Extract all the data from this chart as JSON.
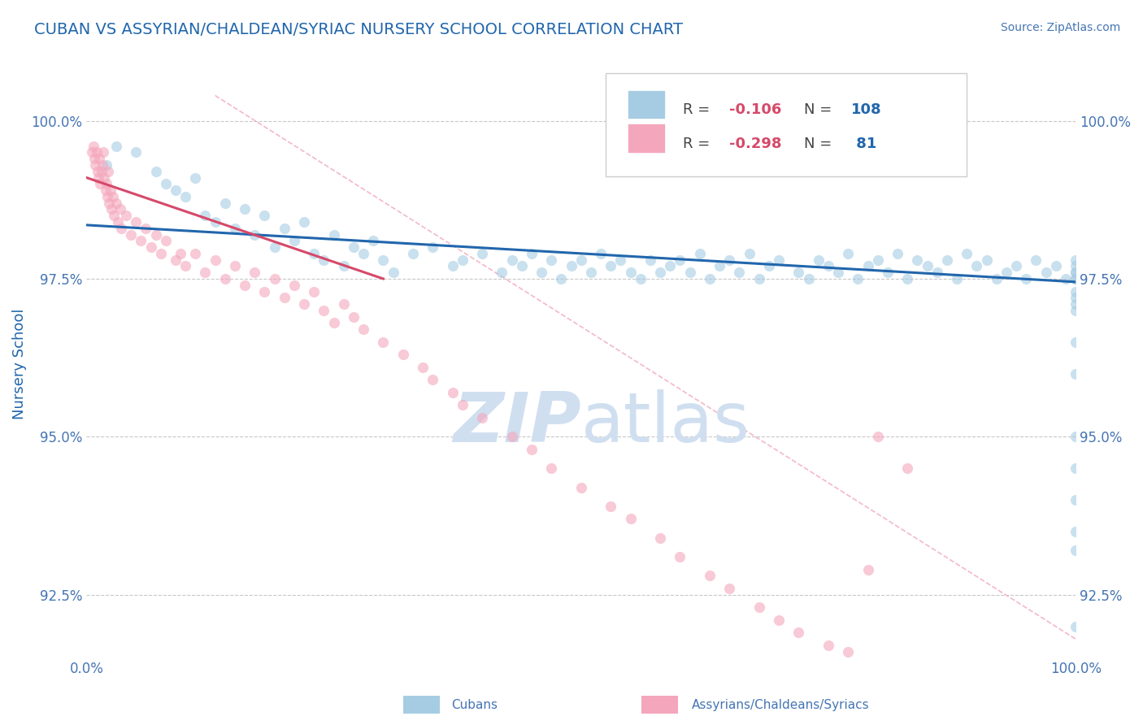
{
  "title": "CUBAN VS ASSYRIAN/CHALDEAN/SYRIAC NURSERY SCHOOL CORRELATION CHART",
  "source_text": "Source: ZipAtlas.com",
  "ylabel": "Nursery School",
  "x_min": 0.0,
  "x_max": 100.0,
  "y_min": 91.5,
  "y_max": 100.8,
  "y_ticks": [
    92.5,
    95.0,
    97.5,
    100.0
  ],
  "y_tick_labels": [
    "92.5%",
    "95.0%",
    "97.5%",
    "100.0%"
  ],
  "x_ticks": [
    0,
    100
  ],
  "x_tick_labels": [
    "0.0%",
    "100.0%"
  ],
  "blue_color": "#a6cce3",
  "pink_color": "#f4a6bc",
  "blue_line_color": "#2166ac",
  "pink_line_color": "#d6496a",
  "diag_line_color": "#f4b8c8",
  "legend_R_color": "#d6496a",
  "legend_N_color": "#2166ac",
  "background_color": "#ffffff",
  "title_color": "#2166ac",
  "axis_label_color": "#2166ac",
  "tick_label_color": "#4575b4",
  "grid_color": "#c8c8c8",
  "watermark_color": "#d0dff0",
  "blue_line_start_y": 98.35,
  "blue_line_end_y": 97.45,
  "pink_line_start_y": 99.1,
  "pink_line_end_y": 97.5,
  "diag_line_start_x": 13,
  "diag_line_start_y": 100.4,
  "diag_line_end_x": 100,
  "diag_line_end_y": 91.8,
  "blue_scatter_x": [
    2.0,
    3.0,
    5.0,
    7.0,
    8.0,
    9.0,
    10.0,
    11.0,
    12.0,
    13.0,
    14.0,
    15.0,
    16.0,
    17.0,
    18.0,
    19.0,
    20.0,
    21.0,
    22.0,
    23.0,
    24.0,
    25.0,
    26.0,
    27.0,
    28.0,
    29.0,
    30.0,
    31.0,
    33.0,
    35.0,
    37.0,
    38.0,
    40.0,
    42.0,
    43.0,
    44.0,
    45.0,
    46.0,
    47.0,
    48.0,
    49.0,
    50.0,
    51.0,
    52.0,
    53.0,
    54.0,
    55.0,
    56.0,
    57.0,
    58.0,
    59.0,
    60.0,
    61.0,
    62.0,
    63.0,
    64.0,
    65.0,
    66.0,
    67.0,
    68.0,
    69.0,
    70.0,
    72.0,
    73.0,
    74.0,
    75.0,
    76.0,
    77.0,
    78.0,
    79.0,
    80.0,
    81.0,
    82.0,
    83.0,
    84.0,
    85.0,
    86.0,
    87.0,
    88.0,
    89.0,
    90.0,
    91.0,
    92.0,
    93.0,
    94.0,
    95.0,
    96.0,
    97.0,
    98.0,
    99.0,
    100.0,
    100.0,
    100.0,
    100.0,
    100.0,
    100.0,
    100.0,
    100.0,
    100.0,
    100.0,
    100.0,
    100.0,
    100.0,
    100.0,
    100.0,
    100.0,
    100.0,
    100.0
  ],
  "blue_scatter_y": [
    99.3,
    99.6,
    99.5,
    99.2,
    99.0,
    98.9,
    98.8,
    99.1,
    98.5,
    98.4,
    98.7,
    98.3,
    98.6,
    98.2,
    98.5,
    98.0,
    98.3,
    98.1,
    98.4,
    97.9,
    97.8,
    98.2,
    97.7,
    98.0,
    97.9,
    98.1,
    97.8,
    97.6,
    97.9,
    98.0,
    97.7,
    97.8,
    97.9,
    97.6,
    97.8,
    97.7,
    97.9,
    97.6,
    97.8,
    97.5,
    97.7,
    97.8,
    97.6,
    97.9,
    97.7,
    97.8,
    97.6,
    97.5,
    97.8,
    97.6,
    97.7,
    97.8,
    97.6,
    97.9,
    97.5,
    97.7,
    97.8,
    97.6,
    97.9,
    97.5,
    97.7,
    97.8,
    97.6,
    97.5,
    97.8,
    97.7,
    97.6,
    97.9,
    97.5,
    97.7,
    97.8,
    97.6,
    97.9,
    97.5,
    97.8,
    97.7,
    97.6,
    97.8,
    97.5,
    97.9,
    97.7,
    97.8,
    97.5,
    97.6,
    97.7,
    97.5,
    97.8,
    97.6,
    97.7,
    97.5,
    97.6,
    97.8,
    97.5,
    97.7,
    97.6,
    94.5,
    95.0,
    97.3,
    96.5,
    94.0,
    92.0,
    97.5,
    97.0,
    97.2,
    93.5,
    96.0,
    97.1,
    93.2
  ],
  "pink_scatter_x": [
    0.5,
    0.7,
    0.8,
    0.9,
    1.0,
    1.1,
    1.2,
    1.3,
    1.4,
    1.5,
    1.6,
    1.7,
    1.8,
    1.9,
    2.0,
    2.1,
    2.2,
    2.3,
    2.4,
    2.5,
    2.7,
    2.8,
    3.0,
    3.2,
    3.4,
    3.5,
    4.0,
    4.5,
    5.0,
    5.5,
    6.0,
    6.5,
    7.0,
    7.5,
    8.0,
    9.0,
    9.5,
    10.0,
    11.0,
    12.0,
    13.0,
    14.0,
    15.0,
    16.0,
    17.0,
    18.0,
    19.0,
    20.0,
    21.0,
    22.0,
    23.0,
    24.0,
    25.0,
    26.0,
    27.0,
    28.0,
    30.0,
    32.0,
    34.0,
    35.0,
    37.0,
    38.0,
    40.0,
    43.0,
    45.0,
    47.0,
    50.0,
    53.0,
    55.0,
    58.0,
    60.0,
    63.0,
    65.0,
    68.0,
    70.0,
    72.0,
    75.0,
    77.0,
    79.0,
    80.0,
    83.0
  ],
  "pink_scatter_y": [
    99.5,
    99.6,
    99.4,
    99.3,
    99.5,
    99.2,
    99.1,
    99.4,
    99.0,
    99.2,
    99.3,
    99.5,
    99.1,
    98.9,
    99.0,
    98.8,
    99.2,
    98.7,
    98.9,
    98.6,
    98.8,
    98.5,
    98.7,
    98.4,
    98.6,
    98.3,
    98.5,
    98.2,
    98.4,
    98.1,
    98.3,
    98.0,
    98.2,
    97.9,
    98.1,
    97.8,
    97.9,
    97.7,
    97.9,
    97.6,
    97.8,
    97.5,
    97.7,
    97.4,
    97.6,
    97.3,
    97.5,
    97.2,
    97.4,
    97.1,
    97.3,
    97.0,
    96.8,
    97.1,
    96.9,
    96.7,
    96.5,
    96.3,
    96.1,
    95.9,
    95.7,
    95.5,
    95.3,
    95.0,
    94.8,
    94.5,
    94.2,
    93.9,
    93.7,
    93.4,
    93.1,
    92.8,
    92.6,
    92.3,
    92.1,
    91.9,
    91.7,
    91.6,
    92.9,
    95.0,
    94.5
  ]
}
